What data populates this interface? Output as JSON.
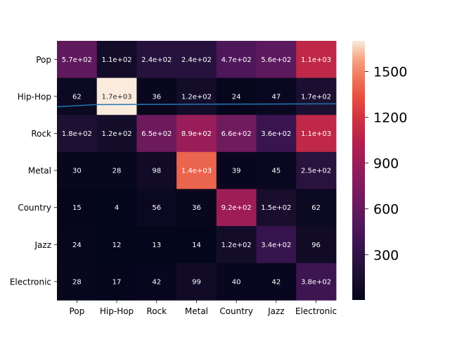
{
  "chart_data": {
    "type": "heatmap",
    "title": "",
    "xlabel": "",
    "ylabel": "",
    "rows": [
      "Pop",
      "Hip-Hop",
      "Rock",
      "Metal",
      "Country",
      "Jazz",
      "Electronic"
    ],
    "columns": [
      "Pop",
      "Hip-Hop",
      "Rock",
      "Metal",
      "Country",
      "Jazz",
      "Electronic"
    ],
    "values": [
      [
        570,
        110,
        240,
        240,
        470,
        560,
        1100
      ],
      [
        62,
        1700,
        36,
        120,
        24,
        47,
        170
      ],
      [
        180,
        120,
        650,
        890,
        660,
        360,
        1100
      ],
      [
        30,
        28,
        98,
        1400,
        39,
        45,
        250
      ],
      [
        15,
        4,
        56,
        36,
        920,
        150,
        62
      ],
      [
        24,
        12,
        13,
        14,
        120,
        340,
        96
      ],
      [
        28,
        17,
        42,
        99,
        40,
        42,
        380
      ]
    ],
    "labels": [
      [
        "5.7e+02",
        "1.1e+02",
        "2.4e+02",
        "2.4e+02",
        "4.7e+02",
        "5.6e+02",
        "1.1e+03"
      ],
      [
        "62",
        "1.7e+03",
        "36",
        "1.2e+02",
        "24",
        "47",
        "1.7e+02"
      ],
      [
        "1.8e+02",
        "1.2e+02",
        "6.5e+02",
        "8.9e+02",
        "6.6e+02",
        "3.6e+02",
        "1.1e+03"
      ],
      [
        "30",
        "28",
        "98",
        "1.4e+03",
        "39",
        "45",
        "2.5e+02"
      ],
      [
        "15",
        "4",
        "56",
        "36",
        "9.2e+02",
        "1.5e+02",
        "62"
      ],
      [
        "24",
        "12",
        "13",
        "14",
        "1.2e+02",
        "3.4e+02",
        "96"
      ],
      [
        "28",
        "17",
        "42",
        "99",
        "40",
        "42",
        "3.8e+02"
      ]
    ],
    "colormap": "rocket",
    "vmin": 4,
    "vmax": 1700,
    "colorbar_ticks": [
      300,
      600,
      900,
      1200,
      1500
    ],
    "overlay_line": {
      "color": "#1f77b4",
      "points": [
        [
          0,
          1.78
        ],
        [
          1,
          1.72
        ],
        [
          7,
          1.7
        ]
      ]
    }
  }
}
